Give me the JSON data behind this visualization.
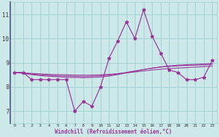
{
  "x": [
    0,
    1,
    2,
    3,
    4,
    5,
    6,
    7,
    8,
    9,
    10,
    11,
    12,
    13,
    14,
    15,
    16,
    17,
    18,
    19,
    20,
    21,
    22,
    23
  ],
  "y_main": [
    8.6,
    8.6,
    8.3,
    8.3,
    8.3,
    8.3,
    8.3,
    7.0,
    7.4,
    7.2,
    8.0,
    9.2,
    9.9,
    10.7,
    10.0,
    11.2,
    10.1,
    9.4,
    8.7,
    8.6,
    8.3,
    8.3,
    8.4,
    9.1
  ],
  "y_trend1": [
    8.6,
    8.58,
    8.56,
    8.54,
    8.52,
    8.51,
    8.5,
    8.49,
    8.49,
    8.49,
    8.5,
    8.52,
    8.55,
    8.58,
    8.62,
    8.66,
    8.7,
    8.73,
    8.76,
    8.78,
    8.8,
    8.82,
    8.84,
    8.86
  ],
  "y_trend2": [
    8.6,
    8.57,
    8.53,
    8.5,
    8.48,
    8.46,
    8.45,
    8.44,
    8.43,
    8.44,
    8.46,
    8.49,
    8.54,
    8.6,
    8.66,
    8.72,
    8.77,
    8.82,
    8.85,
    8.87,
    8.89,
    8.9,
    8.91,
    8.93
  ],
  "y_trend3": [
    8.6,
    8.56,
    8.51,
    8.47,
    8.44,
    8.42,
    8.4,
    8.39,
    8.38,
    8.39,
    8.41,
    8.45,
    8.51,
    8.58,
    8.65,
    8.72,
    8.78,
    8.83,
    8.87,
    8.9,
    8.92,
    8.93,
    8.95,
    8.97
  ],
  "line_color": "#993399",
  "bg_color": "#cce8e8",
  "grid_color": "#99cccc",
  "border_color": "#666699",
  "xlabel": "Windchill (Refroidissement éolien,°C)",
  "ylim": [
    6.5,
    11.5
  ],
  "yticks": [
    7,
    8,
    9,
    10,
    11
  ],
  "xticks": [
    0,
    1,
    2,
    3,
    4,
    5,
    6,
    7,
    8,
    9,
    10,
    11,
    12,
    13,
    14,
    15,
    16,
    17,
    18,
    19,
    20,
    21,
    22,
    23
  ]
}
